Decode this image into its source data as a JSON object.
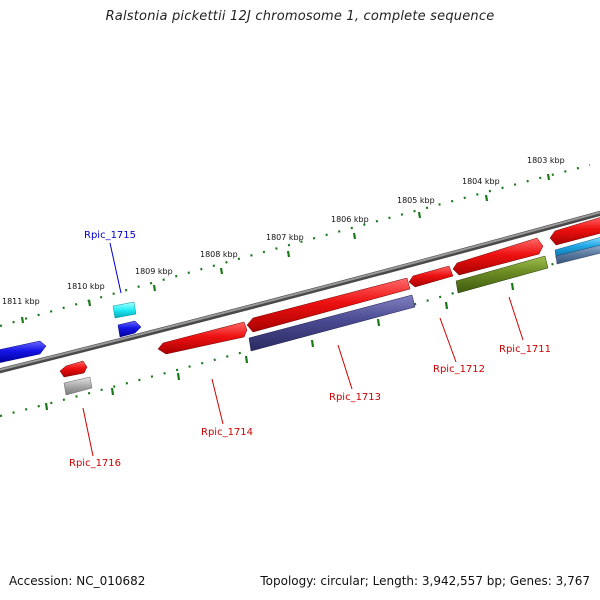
{
  "header": {
    "title": "Ralstonia pickettii 12J chromosome 1, complete sequence"
  },
  "footer": {
    "accession": "Accession: NC_010682",
    "summary": "Topology: circular; Length: 3,942,557 bp; Genes: 3,767"
  },
  "map": {
    "scale_ticks": [
      "1803 kbp",
      "1804 kbp",
      "1805 kbp",
      "1806 kbp",
      "1807 kbp",
      "1808 kbp",
      "1809 kbp",
      "1810 kbp",
      "1811 kbp"
    ],
    "gene_labels": [
      {
        "name": "Rpic_1715",
        "color": "#0000cc"
      },
      {
        "name": "Rpic_1716",
        "color": "#cc0000"
      },
      {
        "name": "Rpic_1714",
        "color": "#cc0000"
      },
      {
        "name": "Rpic_1713",
        "color": "#cc0000"
      },
      {
        "name": "Rpic_1712",
        "color": "#cc0000"
      },
      {
        "name": "Rpic_1711",
        "color": "#cc0000"
      }
    ],
    "colors": {
      "backbone": "#7a7a7a",
      "ticks": "#1a7a1a",
      "cds_red": "#e81010",
      "cds_blue": "#1010e0",
      "cds_cyan": "#10e8f0",
      "rna_purple": "#4a4a90",
      "rna_olive": "#6a8a20",
      "rna_gray": "#a8a8a8",
      "rna_skyblue": "#20a8e0"
    }
  }
}
